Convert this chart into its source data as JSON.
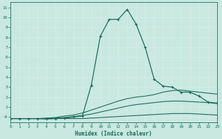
{
  "xlabel": "Humidex (Indice chaleur)",
  "bg_color": "#c8e8e0",
  "grid_color": "#d8ece8",
  "line_color": "#1a6b5a",
  "xlim": [
    0,
    23
  ],
  "ylim": [
    -0.5,
    11.5
  ],
  "xticks": [
    0,
    1,
    2,
    3,
    4,
    5,
    6,
    7,
    8,
    9,
    10,
    11,
    12,
    13,
    14,
    15,
    16,
    17,
    18,
    19,
    20,
    21,
    22,
    23
  ],
  "yticks": [
    0,
    1,
    2,
    3,
    4,
    5,
    6,
    7,
    8,
    9,
    10,
    11
  ],
  "ytick_labels": [
    "-0",
    "1",
    "2",
    "3",
    "4",
    "5",
    "6",
    "7",
    "8",
    "9",
    "10",
    "11"
  ],
  "series": [
    {
      "x": [
        0,
        1,
        2,
        3,
        4,
        5,
        6,
        7,
        8,
        9,
        10,
        11,
        12,
        13,
        14,
        15,
        16,
        17,
        18,
        19,
        20,
        21,
        22,
        23
      ],
      "y": [
        -0.15,
        -0.15,
        -0.15,
        -0.15,
        -0.15,
        -0.15,
        -0.15,
        -0.15,
        -0.15,
        -0.1,
        -0.05,
        0.0,
        0.05,
        0.1,
        0.15,
        0.2,
        0.25,
        0.3,
        0.35,
        0.35,
        0.35,
        0.3,
        0.25,
        0.2
      ],
      "marker": false,
      "linewidth": 0.8
    },
    {
      "x": [
        0,
        1,
        2,
        3,
        4,
        5,
        6,
        7,
        8,
        9,
        10,
        11,
        12,
        13,
        14,
        15,
        16,
        17,
        18,
        19,
        20,
        21,
        22,
        23
      ],
      "y": [
        -0.15,
        -0.15,
        -0.15,
        -0.15,
        -0.15,
        -0.1,
        -0.05,
        0.05,
        0.15,
        0.3,
        0.5,
        0.7,
        0.9,
        1.1,
        1.25,
        1.35,
        1.45,
        1.55,
        1.6,
        1.6,
        1.55,
        1.5,
        1.45,
        1.35
      ],
      "marker": false,
      "linewidth": 0.8
    },
    {
      "x": [
        0,
        1,
        2,
        3,
        4,
        5,
        6,
        7,
        8,
        9,
        10,
        11,
        12,
        13,
        14,
        15,
        16,
        17,
        18,
        19,
        20,
        21,
        22,
        23
      ],
      "y": [
        -0.15,
        -0.15,
        -0.15,
        -0.15,
        -0.1,
        -0.05,
        0.1,
        0.2,
        0.4,
        0.7,
        1.0,
        1.3,
        1.6,
        1.85,
        2.0,
        2.1,
        2.25,
        2.5,
        2.65,
        2.7,
        2.6,
        2.5,
        2.4,
        2.3
      ],
      "marker": false,
      "linewidth": 0.8
    },
    {
      "x": [
        0,
        1,
        2,
        3,
        4,
        5,
        6,
        7,
        8,
        9,
        10,
        11,
        12,
        13,
        14,
        15,
        16,
        17,
        18,
        19,
        20,
        21,
        22,
        23
      ],
      "y": [
        -0.15,
        -0.15,
        -0.15,
        -0.15,
        -0.2,
        -0.15,
        -0.1,
        0.0,
        0.1,
        3.2,
        8.1,
        9.8,
        9.8,
        10.8,
        9.3,
        7.0,
        3.8,
        3.1,
        3.0,
        2.5,
        2.5,
        2.1,
        1.5,
        1.4
      ],
      "marker": true,
      "linewidth": 0.9
    }
  ]
}
